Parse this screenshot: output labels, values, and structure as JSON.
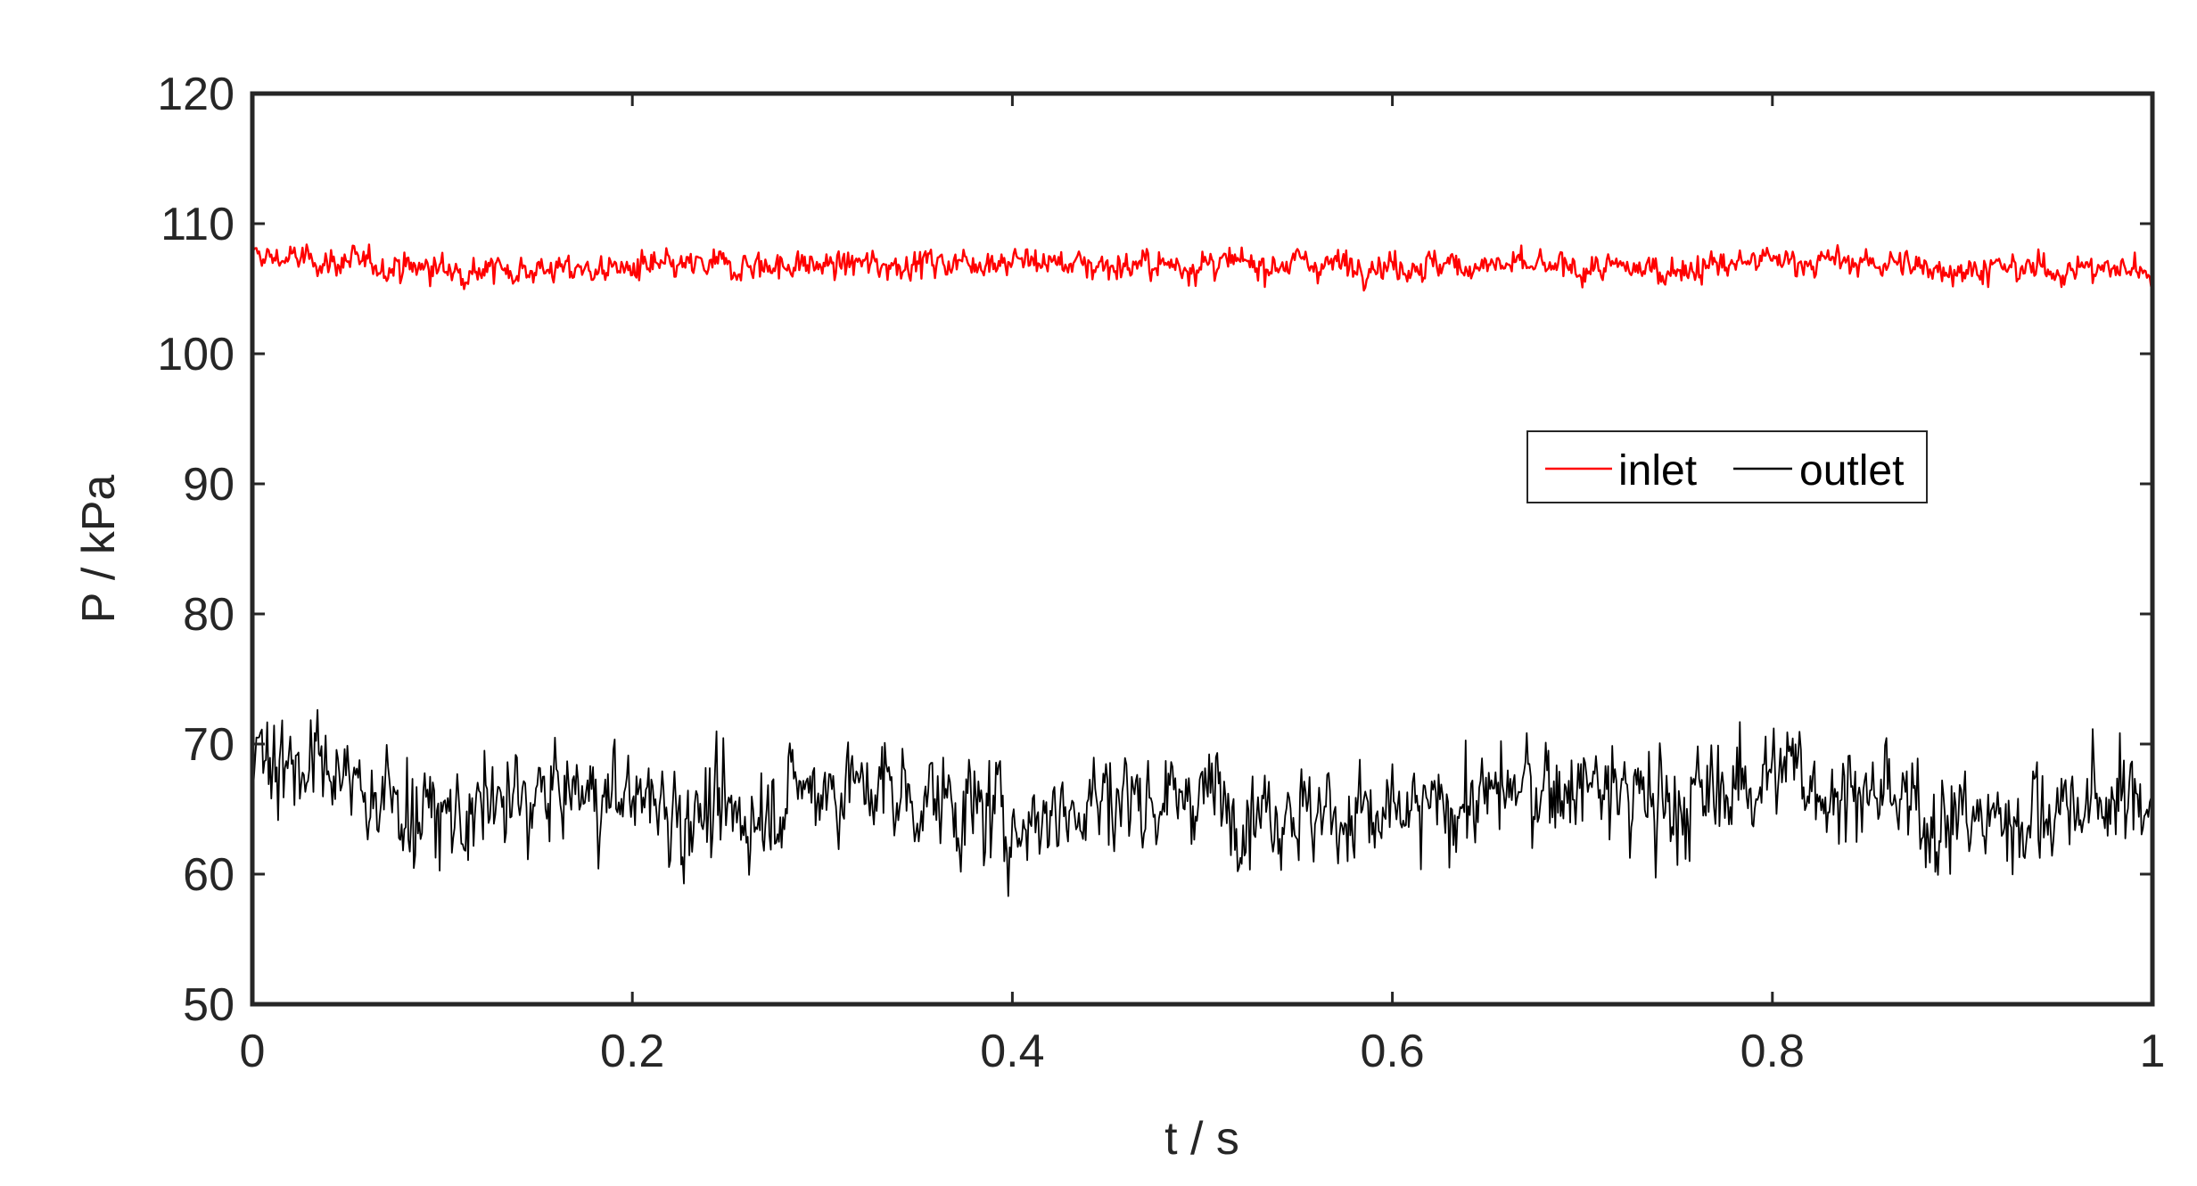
{
  "chart_data": {
    "type": "line",
    "title": "",
    "xlabel": "t / s",
    "ylabel": "P / kPa",
    "xlim": [
      0,
      1
    ],
    "ylim": [
      50,
      120
    ],
    "xticks": [
      0,
      0.2,
      0.4,
      0.6,
      0.8,
      1
    ],
    "xtick_labels": [
      "0",
      "0.2",
      "0.4",
      "0.6",
      "0.8",
      "1"
    ],
    "yticks": [
      50,
      60,
      70,
      80,
      90,
      100,
      110,
      120
    ],
    "ytick_labels": [
      "50",
      "60",
      "70",
      "80",
      "90",
      "100",
      "110",
      "120"
    ],
    "grid": false,
    "legend": {
      "placement": "right",
      "orientation": "horizontal"
    },
    "series": [
      {
        "name": "inlet",
        "color": "#ff0000",
        "x": [
          0,
          0.05,
          0.1,
          0.15,
          0.2,
          0.25,
          0.3,
          0.35,
          0.4,
          0.45,
          0.5,
          0.55,
          0.6,
          0.65,
          0.7,
          0.75,
          0.8,
          0.85,
          0.9,
          0.95,
          1
        ],
        "y": [
          107.5,
          107,
          106.5,
          106.5,
          106.5,
          106.8,
          106.8,
          107,
          107.2,
          106.8,
          106.8,
          107,
          106.8,
          106.8,
          106.5,
          106.5,
          107.2,
          107,
          106.5,
          106.5,
          106.5
        ]
      },
      {
        "name": "outlet",
        "color": "#000000",
        "x": [
          0,
          0.05,
          0.1,
          0.15,
          0.2,
          0.25,
          0.3,
          0.35,
          0.4,
          0.45,
          0.5,
          0.55,
          0.6,
          0.65,
          0.7,
          0.75,
          0.8,
          0.85,
          0.9,
          0.95,
          1
        ],
        "y": [
          70,
          67,
          64,
          66,
          66,
          64,
          67,
          66,
          64,
          66,
          66,
          65,
          64,
          66,
          67,
          65,
          68,
          66,
          64,
          65,
          66
        ]
      }
    ]
  }
}
